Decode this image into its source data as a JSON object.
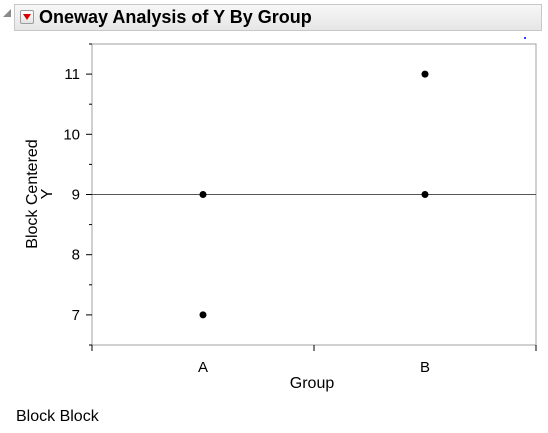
{
  "report": {
    "title": "Oneway Analysis of Y By Group",
    "footer_label": "Block Block"
  },
  "icons": {
    "outline_toggle": "disclosure-triangle-icon",
    "hotspot": "red-triangle-hotspot-icon"
  },
  "colors": {
    "point": "#000000",
    "mean_line": "#555555",
    "hotspot": "#d60000"
  },
  "chart_data": {
    "type": "scatter",
    "title": "",
    "xlabel": "Group",
    "ylabel_lines": [
      "Block Centered",
      "Y"
    ],
    "categories": [
      "A",
      "B"
    ],
    "ylim": [
      6.5,
      11.5
    ],
    "yticks": [
      7,
      8,
      9,
      10,
      11
    ],
    "ytick_labels": [
      "7",
      "8",
      "9",
      "10",
      "11"
    ],
    "grand_mean": 9,
    "grid": false,
    "series": [
      {
        "points": [
          {
            "x": "A",
            "y": 9
          },
          {
            "x": "A",
            "y": 7
          },
          {
            "x": "B",
            "y": 11
          },
          {
            "x": "B",
            "y": 9
          }
        ]
      }
    ]
  }
}
